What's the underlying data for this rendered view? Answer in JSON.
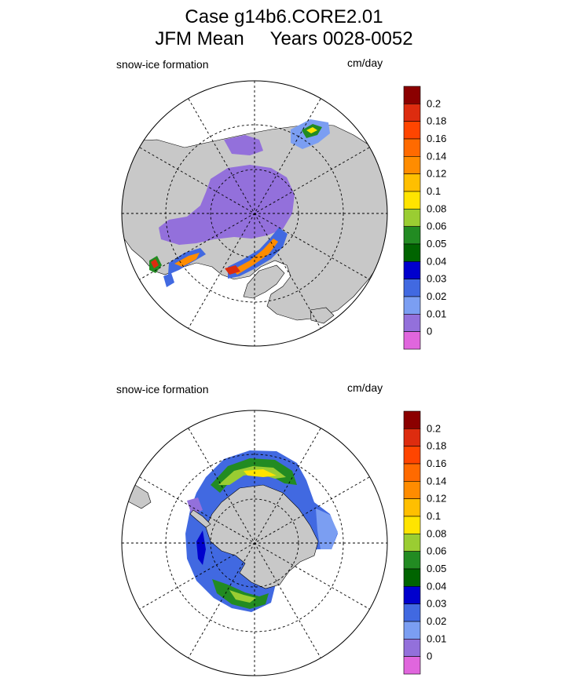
{
  "title": {
    "line1": "Case g14b6.CORE2.01",
    "line2": "JFM Mean     Years 0028-0052"
  },
  "panels": [
    {
      "label": "snow-ice formation",
      "units": "cm/day",
      "hemisphere": "north"
    },
    {
      "label": "snow-ice formation",
      "units": "cm/day",
      "hemisphere": "south"
    }
  ],
  "colorbar": {
    "labels": [
      "0.2",
      "0.18",
      "0.16",
      "0.14",
      "0.12",
      "0.1",
      "0.08",
      "0.06",
      "0.05",
      "0.04",
      "0.03",
      "0.02",
      "0.01",
      "0"
    ],
    "colors": [
      "#8b0000",
      "#dd2c0f",
      "#ff4500",
      "#ff6a00",
      "#ff8c00",
      "#ffbf00",
      "#ffe400",
      "#9acd32",
      "#228b22",
      "#006400",
      "#0000cd",
      "#4169e1",
      "#7b9ef2",
      "#9370db",
      "#e066dd"
    ]
  },
  "colors": {
    "land": "#c8c8c8",
    "ocean": "#ffffff",
    "grid": "#000000"
  }
}
